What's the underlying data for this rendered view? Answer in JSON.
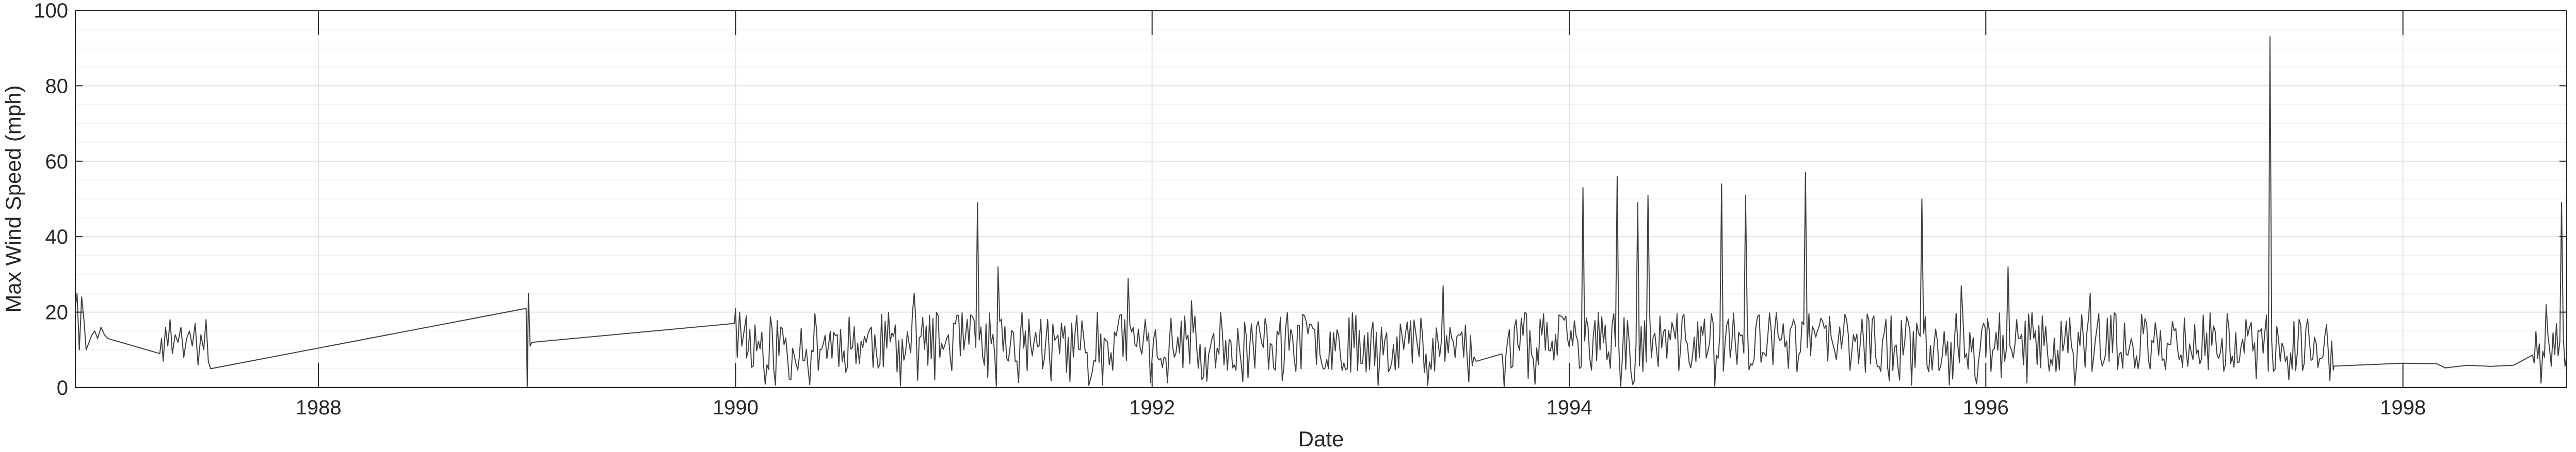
{
  "chart_data": {
    "type": "line",
    "title": "",
    "xlabel": "Date",
    "ylabel": "Max Wind Speed (mph)",
    "xlim": [
      "1986-11-01",
      "1998-10-15"
    ],
    "ylim": [
      0,
      100
    ],
    "grid": true,
    "minor_grid_y": true,
    "xtick_values": [
      "1988-01-01",
      "1990-01-01",
      "1992-01-01",
      "1994-01-01",
      "1996-01-01",
      "1998-01-01"
    ],
    "xtick_labels": [
      "1988",
      "1990",
      "1992",
      "1994",
      "1996",
      "1998"
    ],
    "ytick_values": [
      0,
      20,
      40,
      60,
      80,
      100
    ],
    "ytick_labels": [
      "0",
      "20",
      "40",
      "60",
      "80",
      "100"
    ],
    "colors": {
      "line": "#404040",
      "grid": "#e2e2e2",
      "axis": "#262626"
    },
    "series": [
      {
        "name": "",
        "x": [
          "1986-11-01",
          "1986-11-04",
          "1986-11-08",
          "1986-11-12",
          "1986-11-16",
          "1986-11-20",
          "1986-11-25",
          "1986-11-30",
          "1986-12-05",
          "1986-12-10",
          "1986-12-16",
          "1986-12-22",
          "1986-12-28",
          "1987-03-29",
          "1987-04-01",
          "1987-04-04",
          "1987-04-08",
          "1987-04-12",
          "1987-04-16",
          "1987-04-20",
          "1987-04-25",
          "1987-04-30",
          "1987-05-05",
          "1987-05-10",
          "1987-05-15",
          "1987-05-20",
          "1987-05-25",
          "1987-05-30",
          "1987-06-04",
          "1987-06-09",
          "1987-06-14",
          "1987-06-18",
          "1987-06-22",
          "1987-06-26",
          "1988-12-30",
          "1989-01-01",
          "1989-01-03",
          "1989-01-06",
          "1989-01-09",
          "1989-12-30",
          "1990-01-01",
          "1990-01-04",
          "1990-01-08",
          "1990-01-12",
          "1990-01-16",
          "1990-01-20"
        ],
        "values": [
          21,
          25,
          10,
          24,
          18,
          10,
          12,
          14,
          15,
          13,
          16,
          14,
          13,
          9,
          13,
          7,
          16,
          11,
          18,
          9,
          14,
          12,
          16,
          8,
          13,
          15,
          11,
          17,
          6,
          14,
          10,
          18,
          7,
          5,
          21,
          0,
          25,
          11,
          12,
          17,
          21,
          8,
          20,
          11,
          15,
          19
        ]
      }
    ],
    "generated_segments": [
      {
        "start": "1990-01-20",
        "end": "1991-12-31",
        "step_days": 3,
        "mean": 12,
        "amplitude": 8,
        "seed": 11,
        "peaks": [
          {
            "date": "1991-03-01",
            "value": 49
          },
          {
            "date": "1991-04-05",
            "value": 32
          },
          {
            "date": "1991-11-20",
            "value": 29
          },
          {
            "date": "1990-11-10",
            "value": 25
          }
        ]
      },
      {
        "start": "1992-01-01",
        "end": "1993-07-20",
        "step_days": 3,
        "mean": 12,
        "amplitude": 8,
        "seed": 23,
        "peaks": [
          {
            "date": "1993-05-25",
            "value": 27
          },
          {
            "date": "1992-03-10",
            "value": 23
          }
        ]
      },
      {
        "start": "1993-07-22",
        "end": "1993-09-05",
        "step_days": 45,
        "mean": 8,
        "amplitude": 2,
        "seed": 5,
        "peaks": []
      },
      {
        "start": "1993-09-06",
        "end": "1995-12-31",
        "step_days": 3,
        "mean": 12,
        "amplitude": 8,
        "seed": 37,
        "peaks": [
          {
            "date": "1994-01-25",
            "value": 53
          },
          {
            "date": "1994-03-25",
            "value": 56
          },
          {
            "date": "1994-04-30",
            "value": 49
          },
          {
            "date": "1994-05-20",
            "value": 51
          },
          {
            "date": "1994-09-25",
            "value": 54
          },
          {
            "date": "1994-11-05",
            "value": 51
          },
          {
            "date": "1995-02-20",
            "value": 57
          },
          {
            "date": "1995-09-10",
            "value": 50
          },
          {
            "date": "1995-11-20",
            "value": 27
          }
        ]
      },
      {
        "start": "1996-01-01",
        "end": "1997-09-01",
        "step_days": 3,
        "mean": 12,
        "amplitude": 8,
        "seed": 41,
        "peaks": [
          {
            "date": "1997-05-12",
            "value": 93
          },
          {
            "date": "1996-02-10",
            "value": 32
          },
          {
            "date": "1996-07-01",
            "value": 25
          }
        ]
      },
      {
        "start": "1997-09-02",
        "end": "1998-03-15",
        "step_days": 60,
        "mean": 6,
        "amplitude": 0.6,
        "seed": 3,
        "peaks": []
      },
      {
        "start": "1998-03-16",
        "end": "1998-08-15",
        "step_days": 40,
        "mean": 5.5,
        "amplitude": 0.5,
        "seed": 7,
        "peaks": []
      },
      {
        "start": "1998-08-16",
        "end": "1998-10-15",
        "step_days": 3,
        "mean": 12,
        "amplitude": 7,
        "seed": 53,
        "peaks": [
          {
            "date": "1998-10-05",
            "value": 49
          },
          {
            "date": "1998-09-10",
            "value": 22
          }
        ]
      }
    ]
  }
}
